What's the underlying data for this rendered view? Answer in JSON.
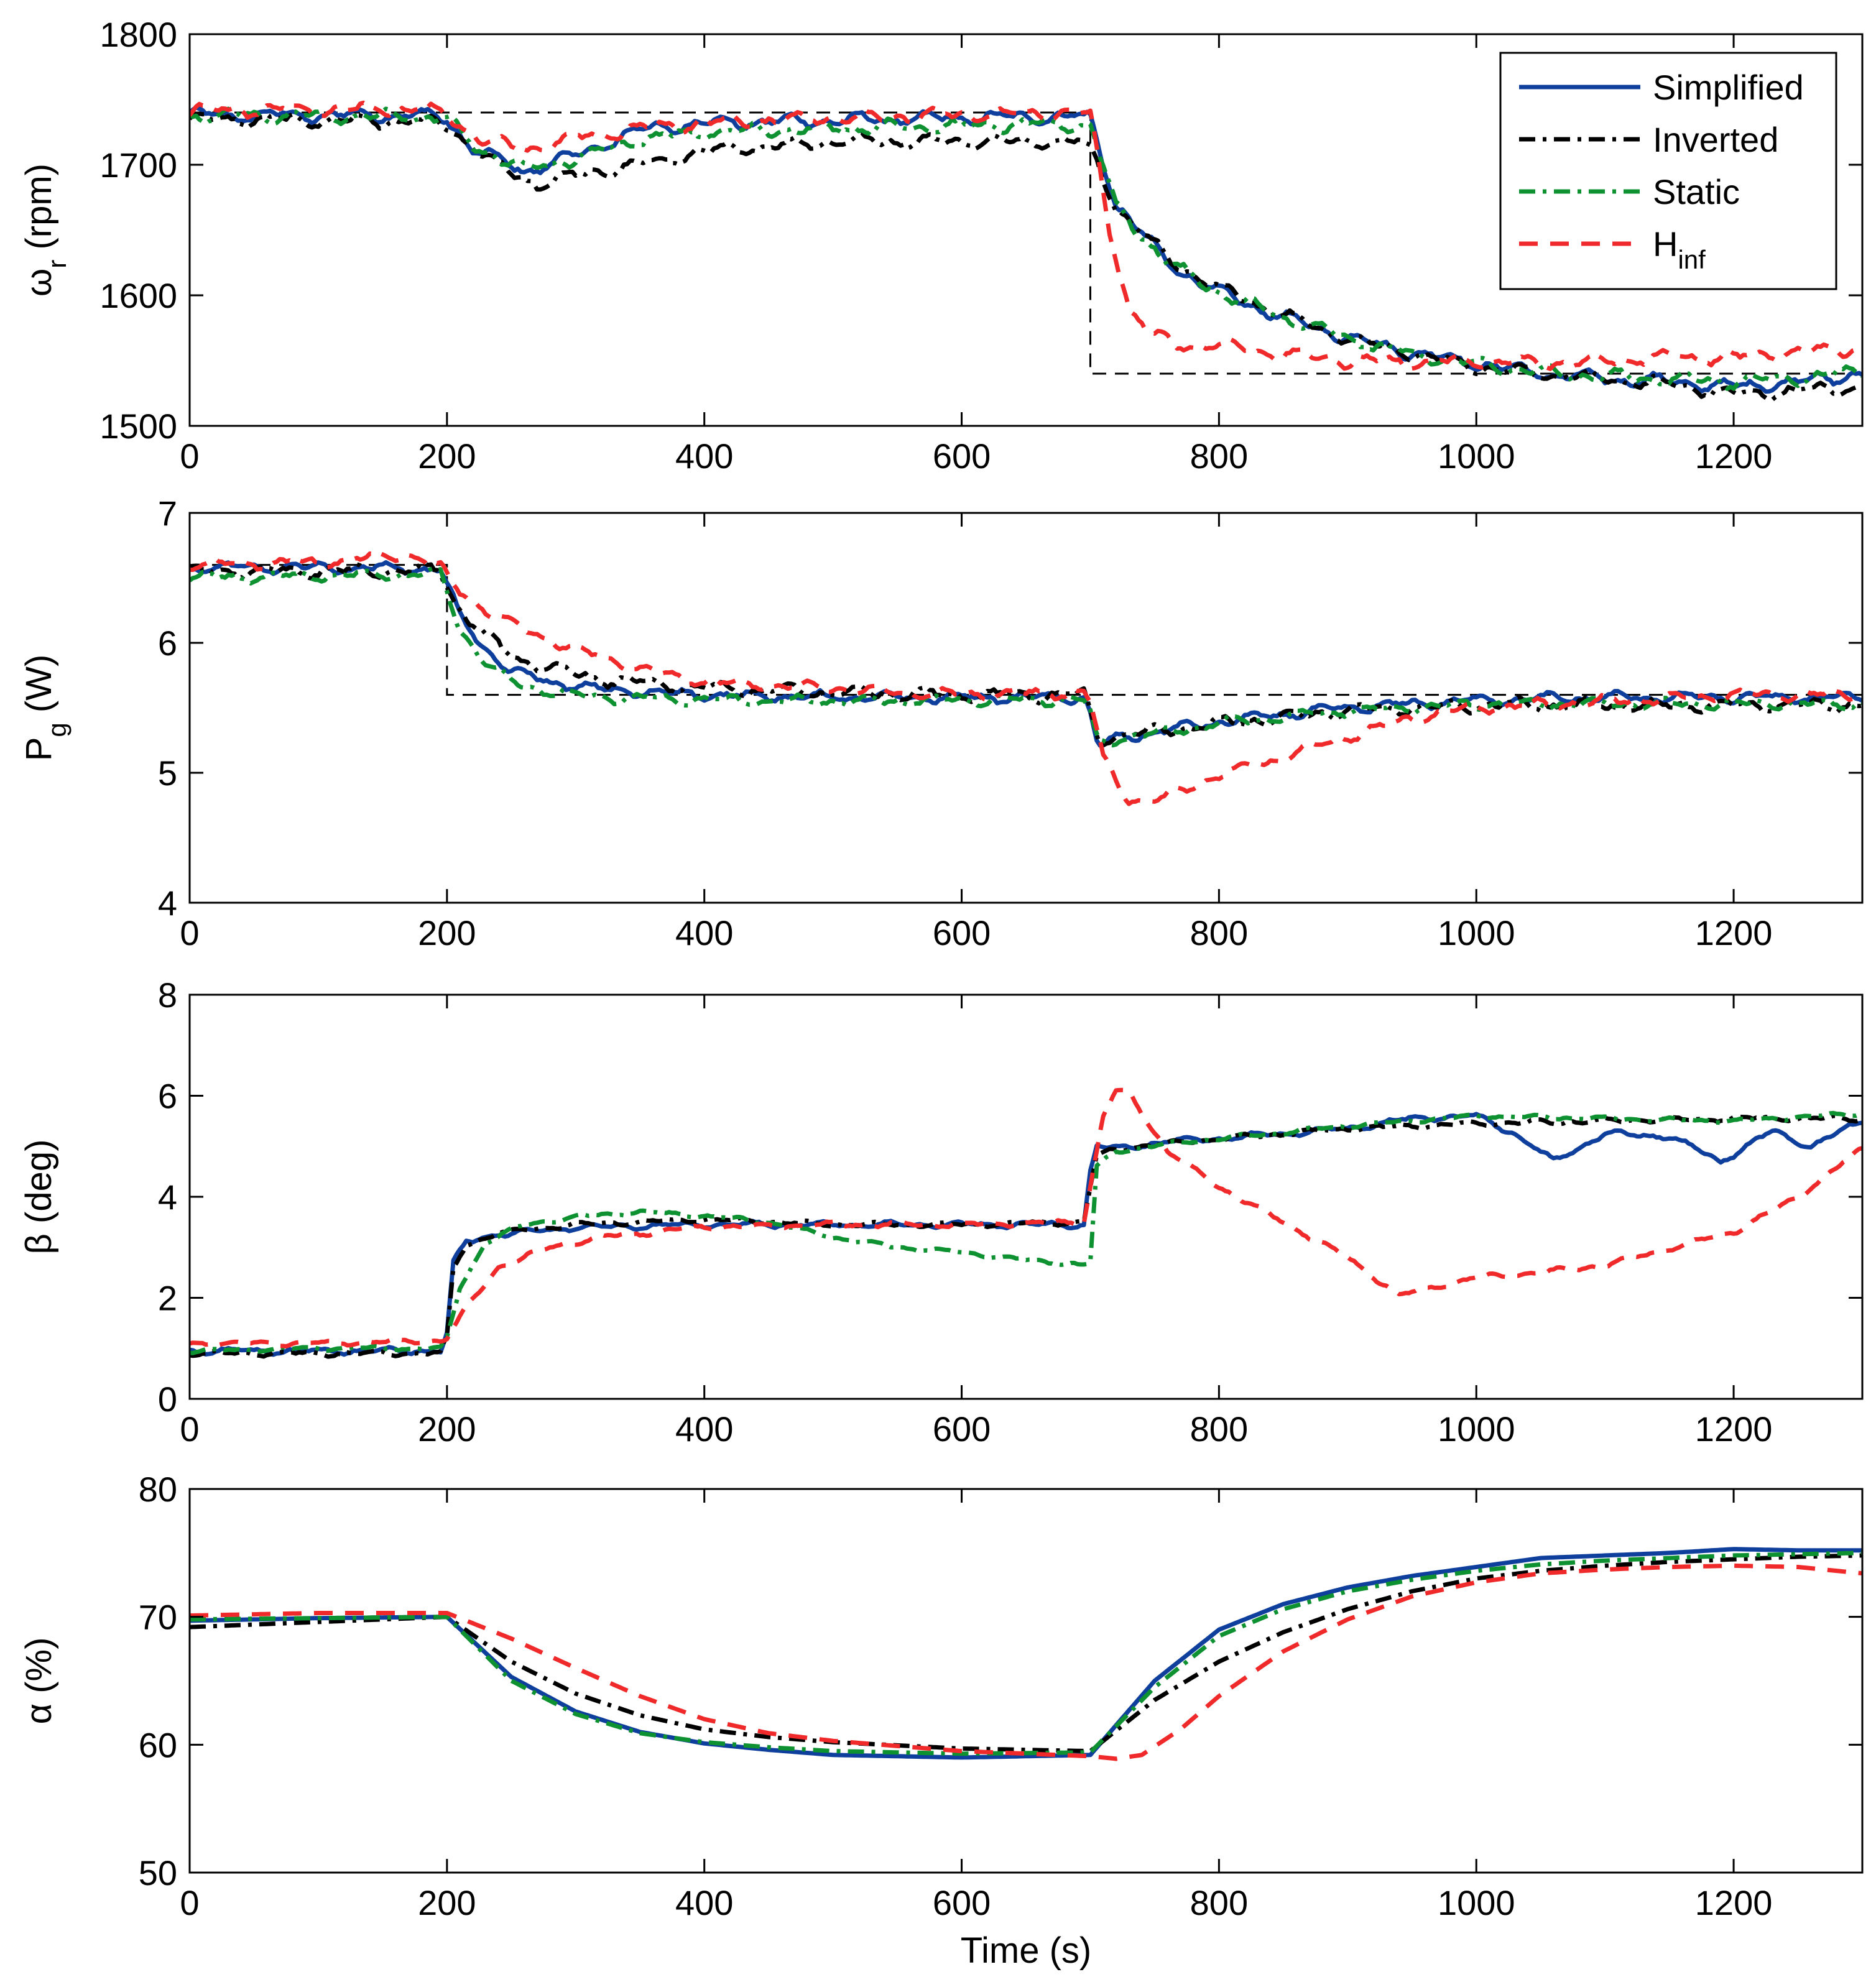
{
  "chart_data": [
    {
      "type": "line",
      "panel": 1,
      "ylabel": "ω",
      "ylabel_sub": "r",
      "ylabel_unit": " (rpm)",
      "xlim": [
        0,
        1300
      ],
      "ylim": [
        1500,
        1800
      ],
      "xticks": [
        0,
        200,
        400,
        600,
        800,
        1000,
        1200
      ],
      "yticks": [
        1500,
        1600,
        1700,
        1800
      ],
      "grid": false,
      "legend": {
        "placement": "top-right",
        "entries": [
          {
            "name": "Simplified",
            "sub": "",
            "series": "Simplified"
          },
          {
            "name": "Inverted",
            "sub": "",
            "series": "Inverted"
          },
          {
            "name": "Static",
            "sub": "",
            "series": "Static"
          },
          {
            "name": "H",
            "sub": "inf",
            "series": "H_inf"
          }
        ]
      },
      "reference": {
        "x": [
          0,
          700,
          700,
          1300
        ],
        "y": [
          1740,
          1740,
          1540,
          1540
        ]
      },
      "series": [
        {
          "name": "Simplified",
          "x": [
            0,
            100,
            180,
            200,
            220,
            260,
            300,
            350,
            400,
            500,
            600,
            690,
            700,
            720,
            760,
            800,
            850,
            900,
            950,
            1000,
            1050,
            1100,
            1150,
            1200,
            1250,
            1300
          ],
          "y": [
            1738,
            1738,
            1738,
            1735,
            1712,
            1695,
            1707,
            1727,
            1732,
            1734,
            1736,
            1737,
            1735,
            1670,
            1625,
            1602,
            1583,
            1568,
            1556,
            1548,
            1540,
            1536,
            1534,
            1530,
            1534,
            1540
          ],
          "noise": 5
        },
        {
          "name": "Inverted",
          "x": [
            0,
            100,
            180,
            200,
            240,
            270,
            300,
            350,
            400,
            500,
            600,
            690,
            700,
            720,
            760,
            800,
            850,
            900,
            950,
            1000,
            1050,
            1100,
            1150,
            1200,
            1250,
            1300
          ],
          "y": [
            1735,
            1734,
            1733,
            1730,
            1698,
            1685,
            1692,
            1700,
            1710,
            1718,
            1718,
            1718,
            1712,
            1668,
            1628,
            1605,
            1585,
            1567,
            1555,
            1545,
            1540,
            1536,
            1532,
            1524,
            1527,
            1530
          ],
          "noise": 5
        },
        {
          "name": "Static",
          "x": [
            0,
            100,
            180,
            200,
            220,
            260,
            300,
            350,
            400,
            500,
            600,
            690,
            700,
            720,
            760,
            800,
            850,
            900,
            950,
            1000,
            1050,
            1100,
            1150,
            1200,
            1250,
            1300
          ],
          "y": [
            1738,
            1737,
            1737,
            1735,
            1715,
            1697,
            1705,
            1720,
            1725,
            1728,
            1730,
            1731,
            1730,
            1668,
            1625,
            1602,
            1583,
            1567,
            1555,
            1547,
            1541,
            1538,
            1536,
            1534,
            1537,
            1542
          ],
          "noise": 5
        },
        {
          "name": "H_inf",
          "x": [
            0,
            100,
            180,
            200,
            230,
            260,
            300,
            350,
            400,
            500,
            600,
            690,
            700,
            715,
            730,
            750,
            770,
            800,
            850,
            900,
            950,
            1000,
            1050,
            1100,
            1150,
            1200,
            1250,
            1300
          ],
          "y": [
            1742,
            1742,
            1743,
            1737,
            1718,
            1712,
            1720,
            1728,
            1732,
            1736,
            1738,
            1740,
            1738,
            1650,
            1590,
            1568,
            1562,
            1562,
            1555,
            1550,
            1549,
            1549,
            1548,
            1550,
            1553,
            1552,
            1557,
            1560
          ],
          "noise": 5
        }
      ]
    },
    {
      "type": "line",
      "panel": 2,
      "ylabel": "P",
      "ylabel_sub": "g",
      "ylabel_unit": " (W)",
      "xlim": [
        0,
        1300
      ],
      "ylim": [
        4,
        7
      ],
      "xticks": [
        0,
        200,
        400,
        600,
        800,
        1000,
        1200
      ],
      "yticks": [
        4,
        5,
        6,
        7
      ],
      "grid": false,
      "reference": {
        "x": [
          0,
          200,
          200,
          1300
        ],
        "y": [
          6.6,
          6.6,
          5.6,
          5.6
        ]
      },
      "series": [
        {
          "name": "Simplified",
          "x": [
            0,
            100,
            195,
            200,
            210,
            230,
            250,
            280,
            320,
            400,
            500,
            600,
            695,
            700,
            706,
            720,
            760,
            800,
            850,
            900,
            950,
            1000,
            1100,
            1200,
            1300
          ],
          "y": [
            6.58,
            6.58,
            6.57,
            6.45,
            6.2,
            5.95,
            5.78,
            5.7,
            5.64,
            5.6,
            5.58,
            5.58,
            5.58,
            5.45,
            5.2,
            5.26,
            5.33,
            5.39,
            5.45,
            5.5,
            5.53,
            5.56,
            5.58,
            5.58,
            5.58
          ],
          "noise": 0.04
        },
        {
          "name": "Inverted",
          "x": [
            0,
            100,
            195,
            200,
            210,
            230,
            250,
            280,
            320,
            400,
            500,
            600,
            695,
            700,
            706,
            720,
            760,
            800,
            850,
            900,
            950,
            1000,
            1100,
            1200,
            1300
          ],
          "y": [
            6.55,
            6.55,
            6.56,
            6.45,
            6.25,
            6.05,
            5.9,
            5.8,
            5.72,
            5.65,
            5.62,
            5.6,
            5.6,
            5.45,
            5.25,
            5.28,
            5.33,
            5.38,
            5.43,
            5.48,
            5.5,
            5.52,
            5.52,
            5.52,
            5.52
          ],
          "noise": 0.05
        },
        {
          "name": "Static",
          "x": [
            0,
            100,
            195,
            200,
            210,
            230,
            250,
            280,
            320,
            400,
            500,
            600,
            695,
            700,
            706,
            720,
            760,
            800,
            850,
            900,
            950,
            1000,
            1100,
            1200,
            1300
          ],
          "y": [
            6.5,
            6.52,
            6.53,
            6.4,
            6.1,
            5.85,
            5.7,
            5.62,
            5.58,
            5.56,
            5.55,
            5.56,
            5.56,
            5.45,
            5.22,
            5.26,
            5.32,
            5.38,
            5.43,
            5.48,
            5.5,
            5.53,
            5.53,
            5.53,
            5.53
          ],
          "noise": 0.04
        },
        {
          "name": "H_inf",
          "x": [
            0,
            100,
            170,
            195,
            200,
            210,
            230,
            260,
            300,
            350,
            400,
            500,
            600,
            695,
            700,
            710,
            730,
            750,
            800,
            850,
            900,
            950,
            1000,
            1100,
            1200,
            1300
          ],
          "y": [
            6.6,
            6.62,
            6.68,
            6.58,
            6.5,
            6.4,
            6.25,
            6.1,
            5.95,
            5.8,
            5.7,
            5.65,
            5.6,
            5.62,
            5.55,
            5.1,
            4.8,
            4.78,
            4.98,
            5.12,
            5.28,
            5.42,
            5.5,
            5.55,
            5.6,
            5.6
          ],
          "noise": 0.04
        }
      ]
    },
    {
      "type": "line",
      "panel": 3,
      "ylabel": "β (deg)",
      "ylabel_sub": "",
      "ylabel_unit": "",
      "xlim": [
        0,
        1300
      ],
      "ylim": [
        0,
        8
      ],
      "xticks": [
        0,
        200,
        400,
        600,
        800,
        1000,
        1200
      ],
      "yticks": [
        0,
        2,
        4,
        6,
        8
      ],
      "grid": false,
      "series": [
        {
          "name": "Simplified",
          "x": [
            0,
            100,
            195,
            200,
            205,
            215,
            235,
            260,
            300,
            400,
            500,
            600,
            695,
            700,
            705,
            720,
            760,
            800,
            900,
            950,
            1000,
            1030,
            1060,
            1100,
            1150,
            1190,
            1230,
            1260,
            1300
          ],
          "y": [
            0.95,
            0.95,
            0.95,
            1.3,
            2.7,
            3.1,
            3.25,
            3.3,
            3.4,
            3.45,
            3.45,
            3.45,
            3.45,
            4.5,
            5.0,
            4.95,
            5.1,
            5.15,
            5.35,
            5.55,
            5.6,
            5.25,
            4.7,
            5.25,
            5.2,
            4.7,
            5.3,
            5.0,
            5.5
          ],
          "noise": 0.06
        },
        {
          "name": "Inverted",
          "x": [
            0,
            100,
            195,
            200,
            205,
            215,
            235,
            260,
            300,
            400,
            500,
            600,
            695,
            700,
            705,
            720,
            760,
            800,
            900,
            1000,
            1100,
            1200,
            1300
          ],
          "y": [
            0.9,
            0.9,
            0.9,
            1.2,
            2.6,
            3.05,
            3.25,
            3.35,
            3.45,
            3.55,
            3.45,
            3.45,
            3.5,
            4.2,
            4.8,
            4.95,
            5.05,
            5.15,
            5.35,
            5.45,
            5.5,
            5.55,
            5.55
          ],
          "noise": 0.05
        },
        {
          "name": "Static",
          "x": [
            0,
            100,
            195,
            200,
            210,
            230,
            260,
            300,
            350,
            400,
            450,
            500,
            550,
            600,
            650,
            695,
            700,
            705,
            720,
            760,
            800,
            900,
            1000,
            1100,
            1200,
            1300
          ],
          "y": [
            0.95,
            1.0,
            1.0,
            1.2,
            2.2,
            3.1,
            3.45,
            3.6,
            3.7,
            3.62,
            3.5,
            3.2,
            3.0,
            2.9,
            2.75,
            2.65,
            2.7,
            4.6,
            4.9,
            5.05,
            5.15,
            5.4,
            5.6,
            5.55,
            5.5,
            5.65
          ],
          "noise": 0.04
        },
        {
          "name": "H_inf",
          "x": [
            0,
            100,
            195,
            200,
            215,
            240,
            280,
            320,
            400,
            500,
            600,
            695,
            700,
            710,
            720,
            730,
            760,
            800,
            850,
            900,
            940,
            1000,
            1050,
            1100,
            1200,
            1250,
            1300
          ],
          "y": [
            1.1,
            1.1,
            1.15,
            1.2,
            1.8,
            2.6,
            3.0,
            3.2,
            3.4,
            3.45,
            3.45,
            3.5,
            4.2,
            5.6,
            6.1,
            6.05,
            4.9,
            4.2,
            3.5,
            2.8,
            2.05,
            2.4,
            2.5,
            2.65,
            3.3,
            4.0,
            4.95
          ],
          "noise": 0.05
        }
      ]
    },
    {
      "type": "line",
      "panel": 4,
      "ylabel": "α (%)",
      "ylabel_sub": "",
      "ylabel_unit": "",
      "xlabel": "Time (s)",
      "xlim": [
        0,
        1300
      ],
      "ylim": [
        50,
        80
      ],
      "xticks": [
        0,
        200,
        400,
        600,
        800,
        1000,
        1200
      ],
      "yticks": [
        50,
        60,
        70,
        80
      ],
      "grid": false,
      "series": [
        {
          "name": "Simplified",
          "x": [
            0,
            100,
            200,
            250,
            300,
            350,
            400,
            450,
            500,
            600,
            700,
            750,
            800,
            850,
            900,
            950,
            1000,
            1050,
            1100,
            1150,
            1200,
            1250,
            1300
          ],
          "y": [
            69.7,
            69.9,
            70.0,
            65.3,
            62.6,
            61.0,
            60.1,
            59.6,
            59.2,
            59.0,
            59.2,
            65.0,
            69.0,
            71.0,
            72.3,
            73.2,
            73.9,
            74.6,
            74.8,
            75.0,
            75.3,
            75.2,
            75.2
          ],
          "noise": 0
        },
        {
          "name": "Inverted",
          "x": [
            0,
            100,
            200,
            250,
            300,
            350,
            400,
            450,
            500,
            600,
            700,
            750,
            800,
            850,
            900,
            950,
            1000,
            1050,
            1100,
            1150,
            1200,
            1250,
            1300
          ],
          "y": [
            69.2,
            69.6,
            70.0,
            66.5,
            64.0,
            62.3,
            61.2,
            60.6,
            60.2,
            59.7,
            59.5,
            63.5,
            66.5,
            68.8,
            70.6,
            72.0,
            73.0,
            73.6,
            74.0,
            74.3,
            74.5,
            74.7,
            74.8
          ],
          "noise": 0
        },
        {
          "name": "Static",
          "x": [
            0,
            100,
            200,
            250,
            300,
            350,
            400,
            450,
            500,
            600,
            700,
            750,
            800,
            850,
            900,
            950,
            1000,
            1050,
            1100,
            1150,
            1200,
            1250,
            1300
          ],
          "y": [
            69.8,
            69.9,
            70.0,
            65.0,
            62.4,
            60.9,
            60.2,
            59.8,
            59.5,
            59.3,
            59.4,
            64.5,
            68.5,
            70.6,
            72.0,
            72.9,
            73.6,
            74.1,
            74.4,
            74.6,
            74.8,
            74.9,
            75.0
          ],
          "noise": 0
        },
        {
          "name": "H_inf",
          "x": [
            0,
            100,
            200,
            250,
            300,
            350,
            400,
            450,
            500,
            600,
            700,
            720,
            740,
            770,
            800,
            850,
            900,
            950,
            1000,
            1050,
            1100,
            1150,
            1200,
            1250,
            1300
          ],
          "y": [
            70.1,
            70.3,
            70.3,
            68.3,
            66.0,
            63.8,
            62.0,
            60.9,
            60.3,
            59.5,
            59.1,
            58.9,
            59.2,
            61.2,
            63.8,
            67.3,
            69.8,
            71.6,
            72.7,
            73.4,
            73.7,
            73.9,
            74.0,
            73.9,
            73.4
          ],
          "noise": 0
        }
      ]
    }
  ],
  "series_styles": {
    "Simplified": {
      "color": "#0f3f9c",
      "dash": "",
      "width": 7
    },
    "Inverted": {
      "color": "#000000",
      "dash": "26 12 6 12",
      "width": 7
    },
    "Static": {
      "color": "#0e9131",
      "dash": "26 12 6 12",
      "width": 7
    },
    "H_inf": {
      "color": "#f02a2a",
      "dash": "30 20",
      "width": 7
    }
  },
  "reference_style": {
    "color": "#000000",
    "dash": "22 14",
    "width": 3
  }
}
